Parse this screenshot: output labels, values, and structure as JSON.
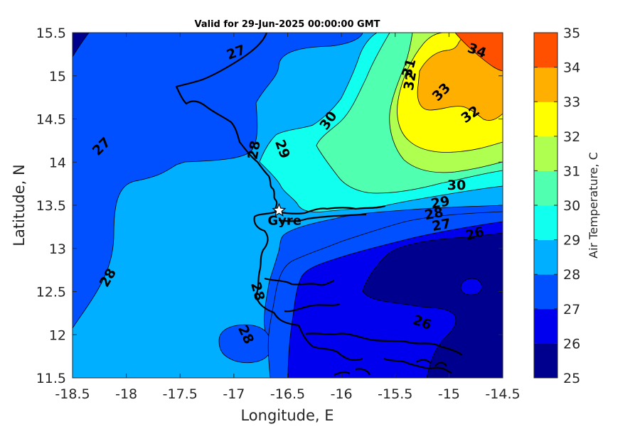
{
  "title": "Valid for 29-Jun-2025 00:00:00 GMT",
  "xlabel": "Longitude, E",
  "ylabel": "Latitude, N",
  "xticks": [
    "-18.5",
    "-18",
    "-17.5",
    "-17",
    "-16.5",
    "-16",
    "-15.5",
    "-15",
    "-14.5"
  ],
  "yticks": [
    "11.5",
    "12",
    "12.5",
    "13",
    "13.5",
    "14",
    "14.5",
    "15",
    "15.5"
  ],
  "xlim": [
    -18.5,
    -14.5
  ],
  "ylim": [
    11.5,
    15.5
  ],
  "colorbar": {
    "label": "Air Temperature, C",
    "ticks": [
      "25",
      "26",
      "27",
      "28",
      "29",
      "30",
      "31",
      "32",
      "33",
      "34",
      "35"
    ],
    "levels": [
      25,
      26,
      27,
      28,
      29,
      30,
      31,
      32,
      33,
      34,
      35
    ],
    "colors": [
      "#00008f",
      "#0000ef",
      "#0050ff",
      "#00afff",
      "#10ffef",
      "#50ffaf",
      "#afff50",
      "#ffff00",
      "#ffaf00",
      "#ff5000",
      "#ff0000"
    ]
  },
  "marker": {
    "name": "Gyre",
    "lon": -16.58,
    "lat": 13.44
  },
  "contour_labels": [
    {
      "text": "27",
      "lon": -16.98,
      "lat": 15.27,
      "rot": -20
    },
    {
      "text": "27",
      "lon": -18.23,
      "lat": 14.18,
      "rot": -45
    },
    {
      "text": "28",
      "lon": -16.81,
      "lat": 14.14,
      "rot": -80
    },
    {
      "text": "29",
      "lon": -16.55,
      "lat": 14.15,
      "rot": 70
    },
    {
      "text": "30",
      "lon": -16.12,
      "lat": 14.48,
      "rot": -55
    },
    {
      "text": "31",
      "lon": -15.37,
      "lat": 15.09,
      "rot": -75
    },
    {
      "text": "32",
      "lon": -15.36,
      "lat": 14.94,
      "rot": -80
    },
    {
      "text": "33",
      "lon": -15.07,
      "lat": 14.81,
      "rot": -45
    },
    {
      "text": "34",
      "lon": -14.74,
      "lat": 15.29,
      "rot": 20
    },
    {
      "text": "32",
      "lon": -14.8,
      "lat": 14.55,
      "rot": -35
    },
    {
      "text": "30",
      "lon": -14.93,
      "lat": 13.73,
      "rot": 0
    },
    {
      "text": "29",
      "lon": -15.08,
      "lat": 13.53,
      "rot": -10
    },
    {
      "text": "28",
      "lon": -15.14,
      "lat": 13.4,
      "rot": -10
    },
    {
      "text": "27",
      "lon": -15.07,
      "lat": 13.27,
      "rot": -10
    },
    {
      "text": "26",
      "lon": -14.76,
      "lat": 13.17,
      "rot": -15
    },
    {
      "text": "28",
      "lon": -18.17,
      "lat": 12.66,
      "rot": -60
    },
    {
      "text": "28",
      "lon": -16.78,
      "lat": 12.5,
      "rot": 75
    },
    {
      "text": "28",
      "lon": -16.89,
      "lat": 12.0,
      "rot": 65
    },
    {
      "text": "26",
      "lon": -15.25,
      "lat": 12.14,
      "rot": 20
    }
  ]
}
